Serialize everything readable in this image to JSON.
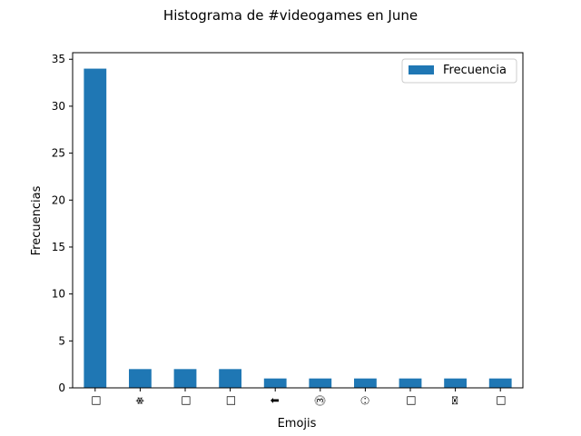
{
  "chart_data": {
    "type": "bar",
    "title": "Histograma de #videogames en June",
    "xlabel": "Emojis",
    "ylabel": "Frecuencias",
    "categories": [
      "□",
      "❄",
      "□",
      "□",
      "⬆",
      "⓷",
      "⚇",
      "□",
      "✉",
      "□"
    ],
    "series": [
      {
        "name": "Frecuencia",
        "values": [
          34,
          2,
          2,
          2,
          1,
          1,
          1,
          1,
          1,
          1
        ],
        "color": "#1f77b4"
      }
    ],
    "ylim": [
      0,
      35.7
    ],
    "yticks": [
      0,
      5,
      10,
      15,
      20,
      25,
      30,
      35
    ],
    "ytick_labels": [
      "0",
      "5",
      "10",
      "15",
      "20",
      "25",
      "30",
      "35"
    ],
    "grid": false,
    "legend_position": "top-right"
  }
}
